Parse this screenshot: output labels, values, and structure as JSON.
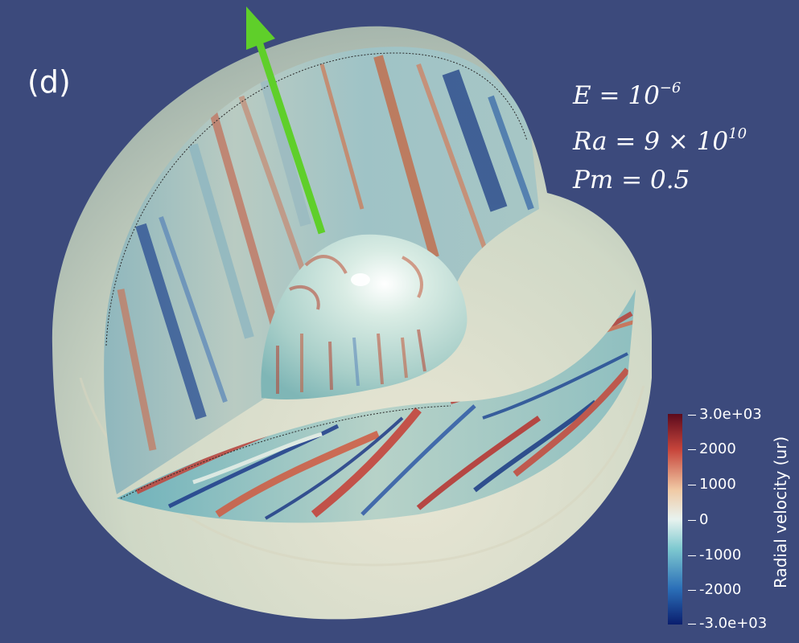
{
  "panel_label": "(d)",
  "parameters": {
    "E": {
      "symbol": "E",
      "operator": "=",
      "base": "10",
      "exponent": "−6"
    },
    "Ra": {
      "symbol": "Ra",
      "operator": "=",
      "mantissa": "9 ×",
      "base": "10",
      "exponent": "10"
    },
    "Pm": {
      "symbol": "Pm",
      "operator": "=",
      "value": "0.5"
    }
  },
  "colorbar": {
    "title": "Radial velocity (ur)",
    "ticks": [
      "3.0e+03",
      "2000",
      "1000",
      "0",
      "-1000",
      "-2000",
      "-3.0e+03"
    ],
    "range": [
      -3000,
      3000
    ],
    "colormap": [
      "#0a1e6e",
      "#2b6fb8",
      "#7ec9d0",
      "#e8f3ef",
      "#f0c9a4",
      "#c7453b",
      "#5c0a1c"
    ]
  },
  "rotation_axis_color": "#5fcf2a",
  "background_color": "#3c4a7c"
}
